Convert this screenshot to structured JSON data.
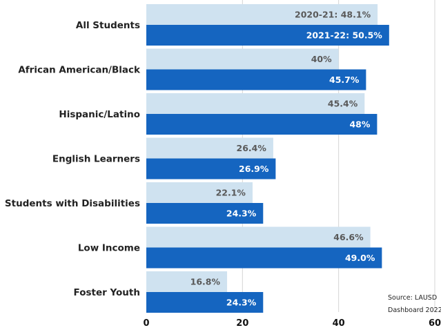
{
  "chart_data": {
    "type": "bar",
    "orientation": "horizontal",
    "categories": [
      "All Students",
      "African American/Black",
      "Hispanic/Latino",
      "English Learners",
      "Students with Disabilities",
      "Low Income",
      "Foster Youth"
    ],
    "series": [
      {
        "values": [
          48.1,
          40,
          45.4,
          26.4,
          22.1,
          46.6,
          16.8
        ],
        "labels": [
          "2020-21: 48.1%",
          "40%",
          "45.4%",
          "26.4%",
          "22.1%",
          "46.6%",
          "16.8%"
        ],
        "color": "#cfe2f0",
        "label_color": "#595959"
      },
      {
        "values": [
          50.5,
          45.7,
          48,
          26.9,
          24.3,
          49.0,
          24.3
        ],
        "labels": [
          "2021-22: 50.5%",
          "45.7%",
          "48%",
          "26.9%",
          "24.3%",
          "49.0%",
          "24.3%"
        ],
        "color": "#1565c0",
        "label_color": "#ffffff"
      }
    ],
    "xlim": [
      0,
      60
    ],
    "xticks": [
      "0",
      "20",
      "40",
      "60"
    ],
    "grid": true
  },
  "source": {
    "line1": "Source: LAUSD",
    "line2": "Dashboard 2022"
  }
}
